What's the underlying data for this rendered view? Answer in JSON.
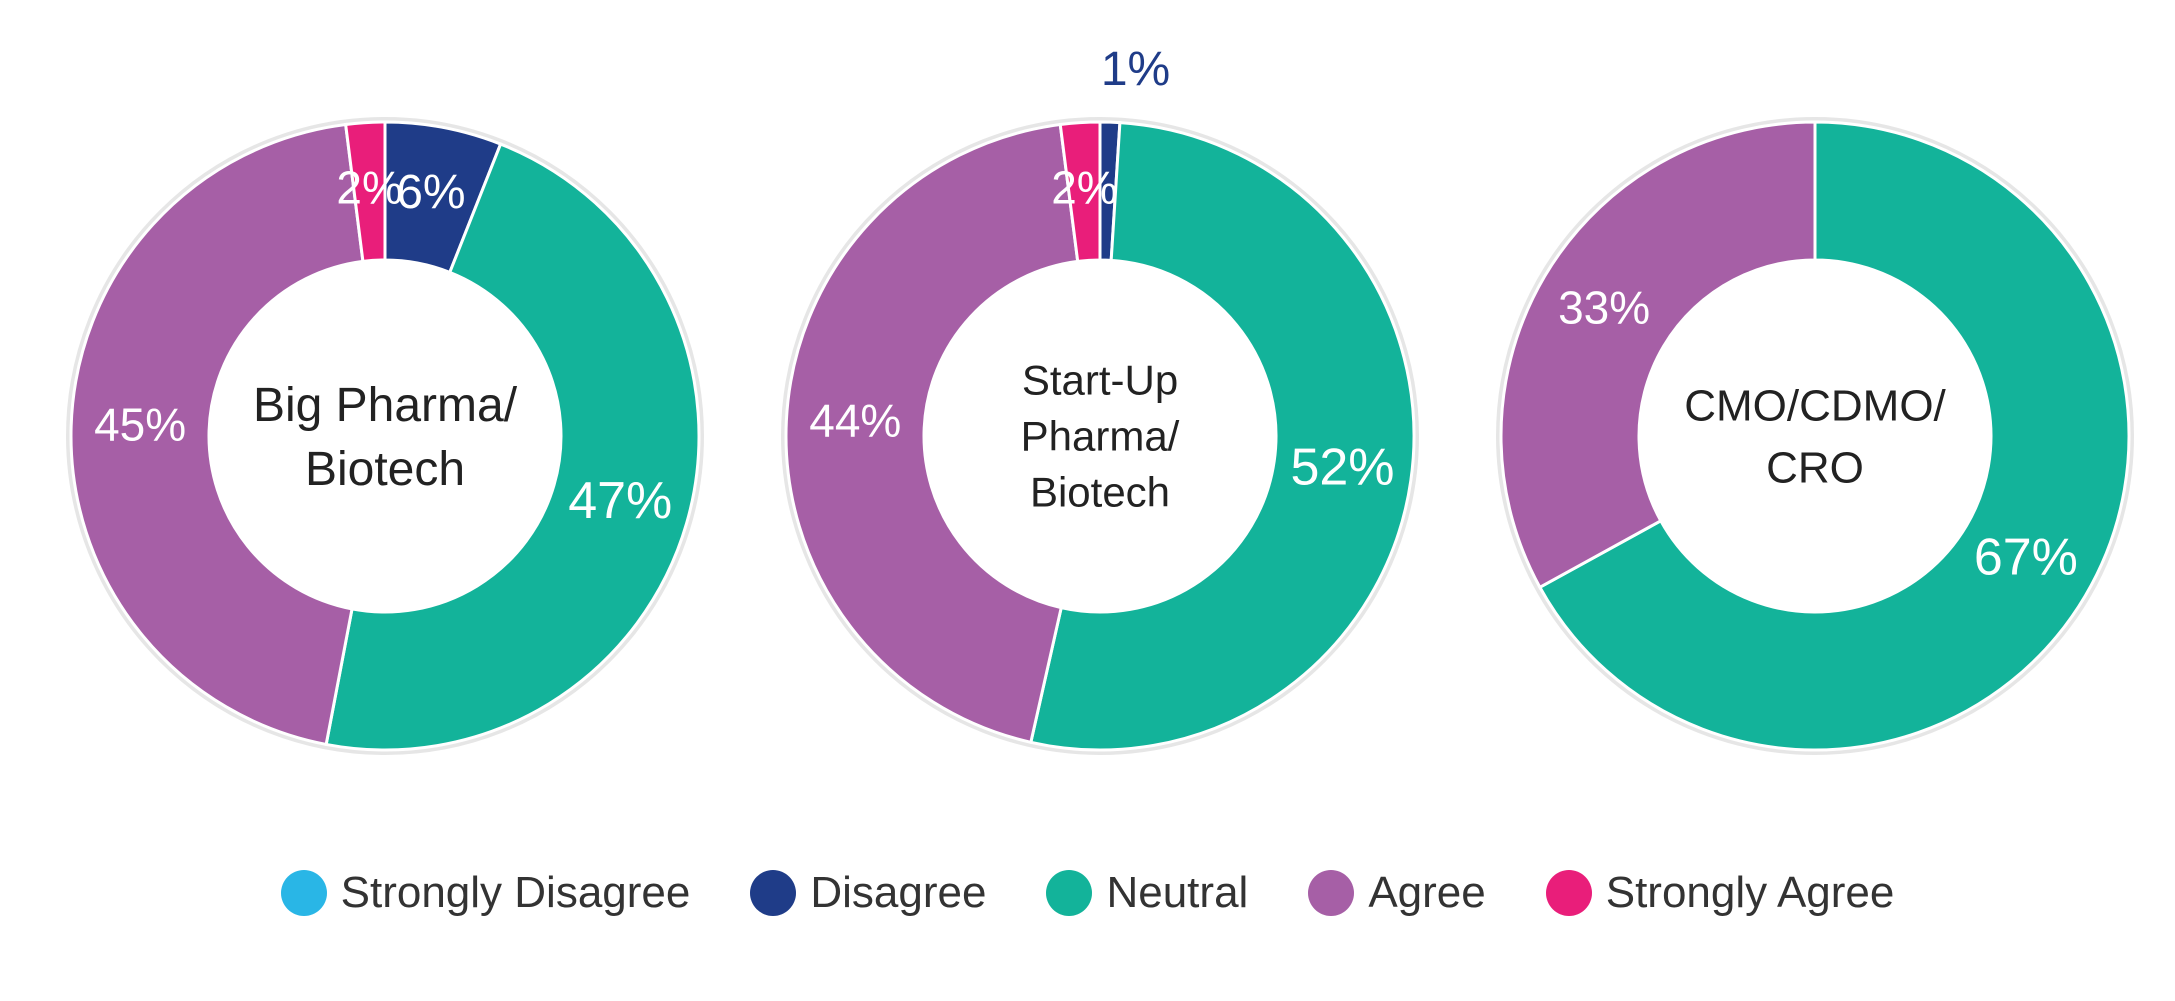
{
  "chart_data": [
    {
      "type": "pie",
      "title": "Big Pharma/ Biotech",
      "title_lines": [
        "Big Pharma/",
        "Biotech"
      ],
      "categories": [
        "Strongly Disagree",
        "Disagree",
        "Neutral",
        "Agree",
        "Strongly Agree"
      ],
      "values": [
        0,
        6,
        47,
        45,
        2
      ],
      "labels": [
        "",
        "6%",
        "47%",
        "45%",
        "2%"
      ]
    },
    {
      "type": "pie",
      "title": "Start-Up Pharma/ Biotech",
      "title_lines": [
        "Start-Up",
        "Pharma/",
        "Biotech"
      ],
      "categories": [
        "Strongly Disagree",
        "Disagree",
        "Neutral",
        "Agree",
        "Strongly Agree"
      ],
      "values": [
        0,
        1,
        52,
        44,
        2
      ],
      "labels": [
        "",
        "1%",
        "52%",
        "44%",
        "2%"
      ]
    },
    {
      "type": "pie",
      "title": "CMO/CDMO/ CRO",
      "title_lines": [
        "CMO/CDMO/",
        "CRO"
      ],
      "categories": [
        "Strongly Disagree",
        "Disagree",
        "Neutral",
        "Agree",
        "Strongly Agree"
      ],
      "values": [
        0,
        0,
        67,
        33,
        0
      ],
      "labels": [
        "",
        "",
        "67%",
        "33%",
        ""
      ]
    }
  ],
  "legend": [
    {
      "label": "Strongly Disagree",
      "color": "#29b6e6"
    },
    {
      "label": "Disagree",
      "color": "#1f3c88"
    },
    {
      "label": "Neutral",
      "color": "#13b39a"
    },
    {
      "label": "Agree",
      "color": "#a65fa6"
    },
    {
      "label": "Strongly Agree",
      "color": "#e91e7a"
    }
  ],
  "colors": {
    "Strongly Disagree": "#29b6e6",
    "Disagree": "#1f3c88",
    "Neutral": "#13b39a",
    "Agree": "#a65fa6",
    "Strongly Agree": "#e91e7a"
  }
}
